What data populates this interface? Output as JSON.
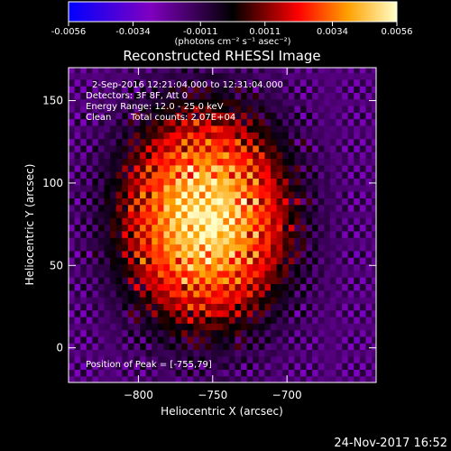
{
  "chart_data": {
    "type": "heatmap",
    "title": "Reconstructed RHESSI Image",
    "xlabel": "Heliocentric X (arcsec)",
    "ylabel": "Heliocentric Y (arcsec)",
    "xlim": [
      -847,
      -640
    ],
    "ylim": [
      -21,
      170
    ],
    "xticks": [
      -800,
      -750,
      -700
    ],
    "yticks": [
      0,
      50,
      100,
      150
    ],
    "colorbar": {
      "ticks": [
        -0.0056,
        -0.0034,
        -0.0011,
        0.0011,
        0.0034,
        0.0056
      ],
      "tick_labels": [
        "-0.0056",
        "-0.0034",
        "-0.0011",
        "0.0011",
        "0.0034",
        "0.0056"
      ],
      "range": [
        -0.0056,
        0.0056
      ],
      "units": "(photons cm⁻² s⁻¹ asec⁻²)",
      "colormap": [
        "#0000ff",
        "#8000c0",
        "#000000",
        "#ff0000",
        "#ffa000",
        "#ffffc8"
      ]
    },
    "annotations": {
      "time": "2-Sep-2016 12:21:04.000 to 12:31:04.000",
      "detectors": "Detectors: 3F 8F, Att 0",
      "energy": "Energy Range: 12.0 - 25.0 keV",
      "method": "Clean",
      "counts": "Total counts: 2.07E+04",
      "peak": "Position of Peak = [-755,79]"
    },
    "peak": {
      "x": -755,
      "y": 79
    },
    "source": {
      "sigma_x": 33,
      "sigma_y": 38,
      "ring_period": 9
    }
  },
  "footer": {
    "date": "24-Nov-2017 16:52"
  }
}
